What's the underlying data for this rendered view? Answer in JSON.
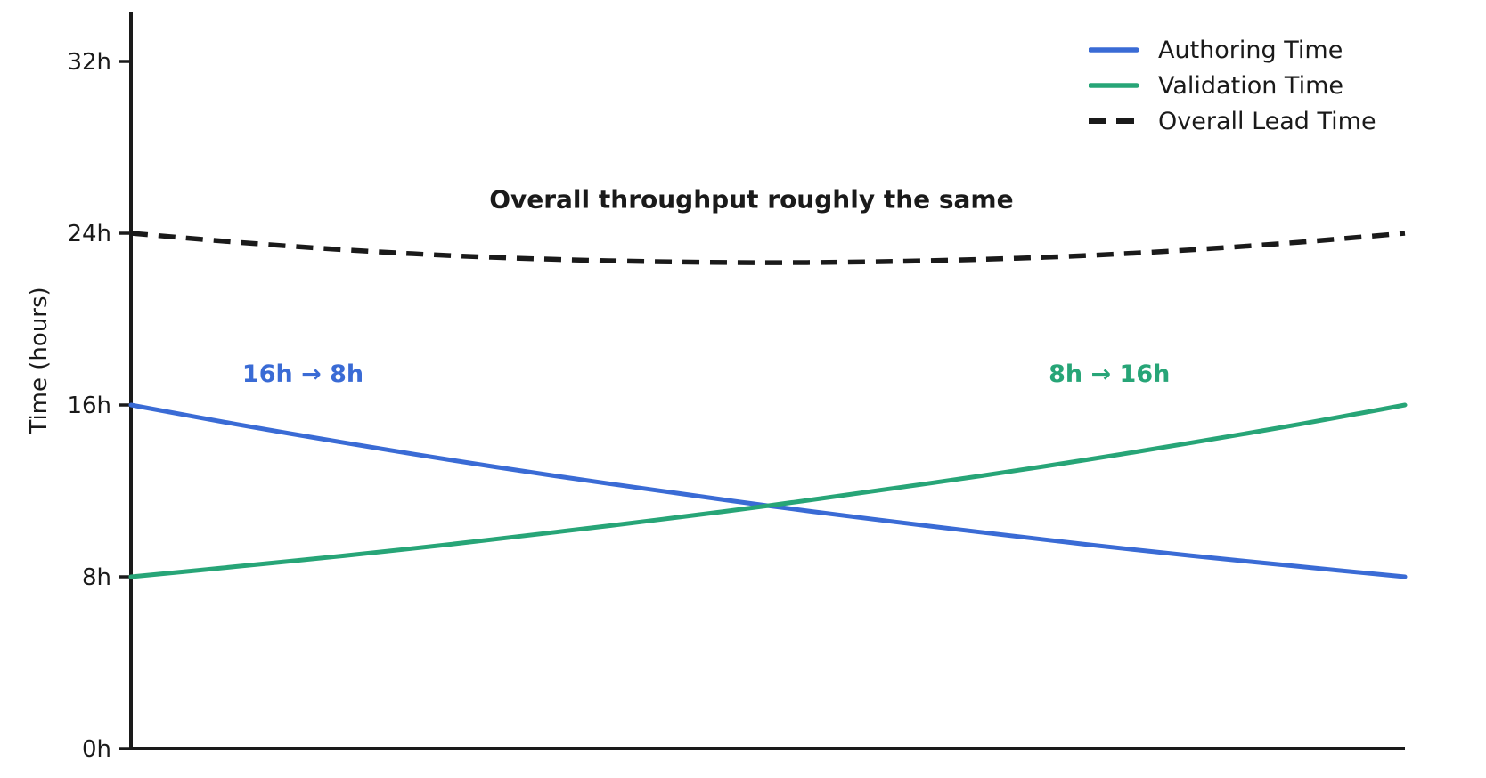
{
  "chart_data": {
    "type": "line",
    "title": "",
    "xlabel": "",
    "ylabel": "Time (hours)",
    "xlim": [
      0,
      1
    ],
    "ylim": [
      0,
      34.3
    ],
    "grid": false,
    "legend_position": "upper right",
    "axis_color": "#1a1a1a",
    "background_color": "#ffffff",
    "x": [
      0,
      0.083,
      0.167,
      0.25,
      0.333,
      0.417,
      0.5,
      0.583,
      0.667,
      0.75,
      0.833,
      0.917,
      1
    ],
    "series": [
      {
        "name": "Authoring Time",
        "color": "#3a6bd5",
        "style": "solid",
        "values": [
          16,
          15.1,
          14.25,
          13.45,
          12.7,
          11.99,
          11.31,
          10.68,
          10.08,
          9.51,
          8.98,
          8.48,
          8
        ]
      },
      {
        "name": "Validation Time",
        "color": "#27a577",
        "style": "solid",
        "values": [
          8,
          8.48,
          8.98,
          9.51,
          10.08,
          10.68,
          11.31,
          11.99,
          12.7,
          13.45,
          14.25,
          15.1,
          16
        ]
      },
      {
        "name": "Overall Lead Time",
        "color": "#1a1a1a",
        "style": "dashed",
        "values": [
          24,
          23.58,
          23.23,
          22.96,
          22.78,
          22.67,
          22.63,
          22.67,
          22.78,
          22.96,
          23.23,
          23.58,
          24
        ]
      }
    ],
    "yticks": [
      {
        "value": 0,
        "label": "0h"
      },
      {
        "value": 8,
        "label": "8h"
      },
      {
        "value": 16,
        "label": "16h"
      },
      {
        "value": 24,
        "label": "24h"
      },
      {
        "value": 32,
        "label": "32h"
      }
    ],
    "xticks": [],
    "annotations": [
      {
        "text": "Overall throughput roughly the same",
        "x": 0.487,
        "y": 25.6,
        "color": "#1a1a1a",
        "role": "headline"
      },
      {
        "text": "16h → 8h",
        "x": 0.135,
        "y": 17.5,
        "color": "#3a6bd5",
        "role": "series-note"
      },
      {
        "text": "8h → 16h",
        "x": 0.768,
        "y": 17.5,
        "color": "#27a577",
        "role": "series-note"
      }
    ]
  }
}
